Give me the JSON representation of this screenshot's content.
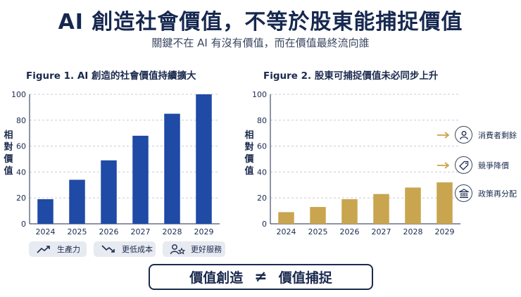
{
  "title": "AI 創造社會價值，不等於股東能捕捉價值",
  "subtitle": "關鍵不在 AI 有沒有價值，而在價值最終流向誰",
  "chart_data": [
    {
      "type": "bar",
      "title": "Figure 1. AI 創造的社會價值持續擴大",
      "ylabel": "相對價值",
      "categories": [
        "2024",
        "2025",
        "2026",
        "2027",
        "2028",
        "2029"
      ],
      "values": [
        19,
        34,
        49,
        68,
        85,
        100
      ],
      "ylim": [
        0,
        100
      ],
      "yticks": [
        0,
        20,
        40,
        60,
        80,
        100
      ],
      "grid": true,
      "color": "#1f4aa5"
    },
    {
      "type": "bar",
      "title": "Figure 2. 股東可捕捉價值未必同步上升",
      "ylabel": "相對價值",
      "categories": [
        "2024",
        "2025",
        "2026",
        "2027",
        "2028",
        "2029"
      ],
      "values": [
        9,
        13,
        19,
        23,
        28,
        32
      ],
      "ylim": [
        0,
        100
      ],
      "yticks": [
        0,
        20,
        40,
        60,
        80,
        100
      ],
      "grid": true,
      "color": "#c9a54f"
    }
  ],
  "drivers": [
    {
      "label": "生產力",
      "icon": "trend-up-icon"
    },
    {
      "label": "更低成本",
      "icon": "trend-down-icon"
    },
    {
      "label": "更好服務",
      "icon": "user-star-icon"
    }
  ],
  "effects": [
    {
      "label": "消費者剩餘",
      "icon": "person-icon"
    },
    {
      "label": "競爭降價",
      "icon": "price-tag-icon"
    },
    {
      "label": "政策再分配",
      "icon": "government-building-icon"
    }
  ],
  "bottom": {
    "left": "價值創造",
    "symbol": "≠",
    "right": "價值捕捉"
  },
  "colors": {
    "navy": "#1b2a4e",
    "blue": "#1f4aa5",
    "gold": "#c9a54f"
  }
}
